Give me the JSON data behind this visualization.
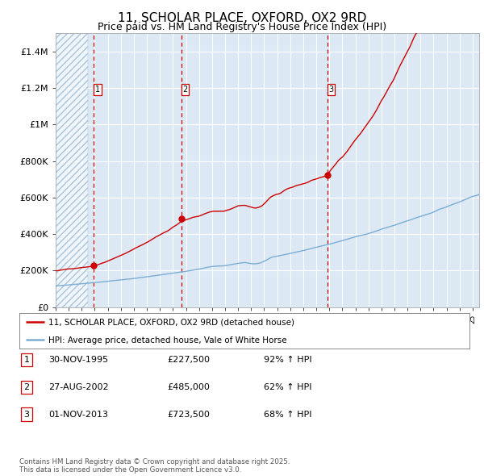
{
  "title": "11, SCHOLAR PLACE, OXFORD, OX2 9RD",
  "subtitle": "Price paid vs. HM Land Registry's House Price Index (HPI)",
  "title_fontsize": 11,
  "subtitle_fontsize": 9,
  "background_color": "#ffffff",
  "plot_bg_color": "#dce9f5",
  "grid_color": "#ffffff",
  "ylim": [
    0,
    1500000
  ],
  "yticks": [
    0,
    200000,
    400000,
    600000,
    800000,
    1000000,
    1200000,
    1400000
  ],
  "ytick_labels": [
    "£0",
    "£200K",
    "£400K",
    "£600K",
    "£800K",
    "£1M",
    "£1.2M",
    "£1.4M"
  ],
  "red_line_color": "#cc0000",
  "blue_line_color": "#7aadd4",
  "marker_color": "#cc0000",
  "vline_color": "#cc0000",
  "sale_dates_num": [
    1995.92,
    2002.65,
    2013.84
  ],
  "sale_prices": [
    227500,
    485000,
    723500
  ],
  "sale_labels": [
    "1",
    "2",
    "3"
  ],
  "xmin": 1993.0,
  "xmax": 2025.5,
  "hatch_xmax": 1995.5,
  "legend_line1": "11, SCHOLAR PLACE, OXFORD, OX2 9RD (detached house)",
  "legend_line2": "HPI: Average price, detached house, Vale of White Horse",
  "table_data": [
    [
      "1",
      "30-NOV-1995",
      "£227,500",
      "92% ↑ HPI"
    ],
    [
      "2",
      "27-AUG-2002",
      "£485,000",
      "62% ↑ HPI"
    ],
    [
      "3",
      "01-NOV-2013",
      "£723,500",
      "68% ↑ HPI"
    ]
  ],
  "footnote": "Contains HM Land Registry data © Crown copyright and database right 2025.\nThis data is licensed under the Open Government Licence v3.0."
}
